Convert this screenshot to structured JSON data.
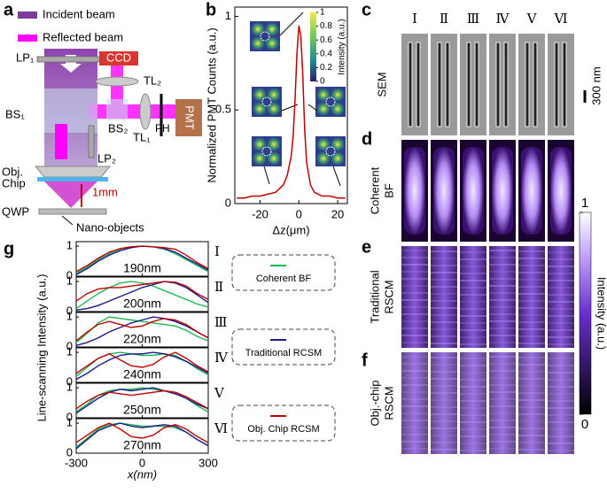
{
  "panel_labels": [
    "a",
    "b",
    "c",
    "d",
    "e",
    "f",
    "g"
  ],
  "diagram": {
    "legend": [
      "Incident beam",
      "Reflected beam"
    ],
    "labels": {
      "lp1": "LP₁",
      "ccd": "CCD",
      "tl2": "TL₂",
      "bs1": "BS₁",
      "bs2": "BS₂",
      "pmt": "PMT",
      "tl1": "TL₁",
      "ph": "PH",
      "lp2": "LP₂",
      "obj": "Obj.",
      "chip": "Chip",
      "qwp": "QWP",
      "distance": "1mm",
      "nano": "Nano-objects"
    }
  },
  "images": {
    "columns": [
      "Ⅰ",
      "Ⅱ",
      "Ⅲ",
      "Ⅳ",
      "Ⅴ",
      "Ⅵ"
    ],
    "rows": [
      [
        "SEM"
      ],
      [
        "Coherent",
        "BF"
      ],
      [
        "Traditional",
        "RSCM"
      ],
      [
        "Obj.-chip",
        "RSCM"
      ]
    ],
    "scale_bar": "300 nm",
    "colorbar": {
      "title": "Intensity (a.u.)",
      "ticks": [
        1,
        0
      ]
    }
  },
  "chart_data": [
    {
      "type": "line",
      "color": "#c00000",
      "x": [
        -32,
        -28,
        -24,
        -20,
        -16,
        -12,
        -8,
        -6,
        -4,
        -3,
        -2,
        -1,
        0,
        1,
        2,
        3,
        4,
        6,
        8,
        12,
        16,
        20,
        24
      ],
      "values": [
        0.03,
        0.03,
        0.04,
        0.04,
        0.05,
        0.06,
        0.1,
        0.15,
        0.25,
        0.35,
        0.55,
        0.8,
        0.95,
        0.9,
        0.7,
        0.4,
        0.22,
        0.1,
        0.06,
        0.04,
        0.04,
        0.03,
        0.03
      ],
      "xlim": [
        -33,
        25
      ],
      "xticks": [
        -20,
        0,
        20
      ],
      "ylim": [
        0,
        1.05
      ],
      "yticks": [
        0,
        0.5,
        1
      ],
      "xlabel": "Δz(μm)",
      "ylabel": "Normalized PMT Counts (a.u.)",
      "inset_colorbar": {
        "title": "Intensity (a.u.)",
        "ticks": [
          0,
          0.2,
          0.4,
          0.6,
          0.8,
          1
        ]
      }
    },
    {
      "type": "line-stack",
      "x": [
        -300,
        -250,
        -200,
        -150,
        -100,
        -50,
        0,
        50,
        100,
        150,
        200,
        250,
        300
      ],
      "xlim": [
        -300,
        300
      ],
      "xticks": [
        -300,
        0,
        300
      ],
      "ylim": [
        0,
        1.15
      ],
      "yticks": [
        0,
        1
      ],
      "xlabel": "x(nm)",
      "ylabel": "Line-scanning Intensity (a.u.)",
      "series": [
        {
          "name": "Coherent BF",
          "color": "#1db954"
        },
        {
          "name": "Traditional RCSM",
          "color": "#1a1a8c"
        },
        {
          "name": "Obj. Chip RCSM",
          "color": "#c00000"
        }
      ],
      "panels": [
        {
          "label": "190nm",
          "series": [
            [
              0.1,
              0.3,
              0.55,
              0.75,
              0.9,
              0.98,
              1,
              0.98,
              0.9,
              0.75,
              0.55,
              0.35,
              0.15
            ],
            [
              0.05,
              0.25,
              0.5,
              0.7,
              0.85,
              0.95,
              1,
              0.98,
              0.92,
              0.8,
              0.6,
              0.4,
              0.2
            ],
            [
              0.15,
              0.35,
              0.6,
              0.8,
              0.92,
              0.98,
              1,
              0.98,
              0.95,
              0.9,
              0.7,
              0.45,
              0.25
            ]
          ]
        },
        {
          "label": "200nm",
          "series": [
            [
              0.1,
              0.35,
              0.6,
              0.8,
              0.95,
              1,
              0.95,
              0.85,
              0.7,
              0.55,
              0.4,
              0.25,
              0.15
            ],
            [
              0.05,
              0.1,
              0.2,
              0.35,
              0.5,
              0.65,
              0.8,
              0.9,
              1,
              0.95,
              0.8,
              0.55,
              0.3
            ],
            [
              0.35,
              0.6,
              0.75,
              0.8,
              0.8,
              0.85,
              0.9,
              0.95,
              1,
              0.98,
              0.85,
              0.6,
              0.4
            ]
          ]
        },
        {
          "label": "220nm",
          "series": [
            [
              0.15,
              0.45,
              0.8,
              1,
              0.95,
              0.9,
              0.85,
              0.8,
              0.75,
              0.7,
              0.55,
              0.35,
              0.2
            ],
            [
              0.05,
              0.15,
              0.3,
              0.5,
              0.65,
              0.8,
              0.9,
              1,
              0.95,
              0.85,
              0.7,
              0.5,
              0.3
            ],
            [
              0.2,
              0.5,
              0.75,
              0.85,
              0.75,
              0.65,
              0.7,
              0.85,
              0.95,
              0.9,
              0.75,
              0.5,
              0.3
            ]
          ]
        },
        {
          "label": "240nm",
          "series": [
            [
              0.2,
              0.5,
              0.8,
              0.95,
              1,
              0.95,
              0.9,
              0.9,
              0.95,
              0.9,
              0.7,
              0.45,
              0.25
            ],
            [
              0.1,
              0.3,
              0.55,
              0.75,
              0.9,
              0.95,
              0.95,
              1,
              0.95,
              0.85,
              0.7,
              0.5,
              0.3
            ],
            [
              0.3,
              0.55,
              0.8,
              0.95,
              0.75,
              0.55,
              0.5,
              0.6,
              0.85,
              1,
              0.8,
              0.55,
              0.35
            ]
          ]
        },
        {
          "label": "250nm",
          "series": [
            [
              0.2,
              0.45,
              0.75,
              0.9,
              0.95,
              0.95,
              1,
              0.95,
              0.9,
              0.8,
              0.65,
              0.4,
              0.2
            ],
            [
              0.15,
              0.4,
              0.65,
              0.85,
              0.95,
              0.9,
              0.95,
              1,
              0.9,
              0.8,
              0.65,
              0.45,
              0.3
            ],
            [
              0.3,
              0.55,
              0.75,
              0.85,
              0.8,
              0.75,
              0.8,
              0.85,
              0.9,
              0.85,
              0.7,
              0.5,
              0.3
            ]
          ]
        },
        {
          "label": "270nm",
          "series": [
            [
              0.2,
              0.5,
              0.8,
              0.95,
              1,
              0.95,
              0.9,
              0.9,
              0.9,
              0.85,
              0.7,
              0.45,
              0.25
            ],
            [
              0.15,
              0.45,
              0.75,
              0.9,
              1,
              0.9,
              0.85,
              0.9,
              0.95,
              0.9,
              0.7,
              0.45,
              0.25
            ],
            [
              0.35,
              0.6,
              0.85,
              1,
              0.8,
              0.55,
              0.5,
              0.6,
              0.85,
              0.95,
              0.8,
              0.55,
              0.35
            ]
          ]
        }
      ]
    }
  ]
}
